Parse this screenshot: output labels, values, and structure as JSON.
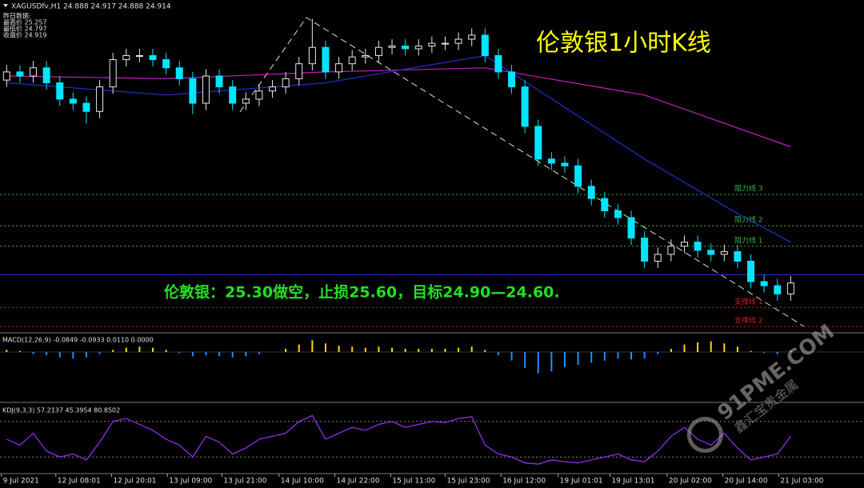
{
  "chart_data": [
    {
      "type": "candlestick",
      "header": "XAGUSDfv,H1  24.888 24.917 24.888 24.914",
      "info": [
        "昨日数据:",
        "最高价 25.257",
        "最低价 24.797",
        "收盘价 24.919"
      ],
      "title": "伦敦银1小时K线",
      "annotation": "伦敦银：25.30做空，止损25.60，目标24.90—24.60.",
      "up_color": "#e8e8e8",
      "down_color": "#00e5ff",
      "xlim": [
        -0.5,
        59.7
      ],
      "ylim": [
        24.55,
        26.9
      ],
      "open": [
        26.4,
        26.46,
        26.43,
        26.49,
        26.38,
        26.26,
        26.23,
        26.17,
        26.35,
        26.55,
        26.58,
        26.58,
        26.55,
        26.49,
        26.41,
        26.23,
        26.43,
        26.35,
        26.23,
        26.26,
        26.32,
        26.35,
        26.41,
        26.52,
        26.64,
        26.46,
        26.52,
        26.57,
        26.58,
        26.64,
        26.65,
        26.63,
        26.65,
        26.67,
        26.67,
        26.7,
        26.73,
        26.58,
        26.46,
        26.35,
        26.06,
        25.82,
        25.79,
        25.77,
        25.62,
        25.53,
        25.44,
        25.39,
        25.24,
        25.07,
        25.12,
        25.18,
        25.21,
        25.15,
        25.12,
        25.14,
        25.07,
        24.92,
        24.89,
        24.83
      ],
      "high": [
        26.51,
        26.51,
        26.54,
        26.54,
        26.43,
        26.31,
        26.28,
        26.4,
        26.6,
        26.63,
        26.63,
        26.63,
        26.6,
        26.54,
        26.46,
        26.48,
        26.48,
        26.4,
        26.31,
        26.37,
        26.4,
        26.46,
        26.57,
        26.85,
        26.69,
        26.57,
        26.62,
        26.63,
        26.69,
        26.7,
        26.7,
        26.7,
        26.72,
        26.72,
        26.75,
        26.78,
        26.78,
        26.63,
        26.51,
        26.4,
        26.11,
        25.87,
        25.84,
        25.82,
        25.67,
        25.58,
        25.49,
        25.44,
        25.29,
        25.17,
        25.23,
        25.26,
        25.26,
        25.2,
        25.19,
        25.19,
        25.12,
        24.97,
        24.94,
        24.96
      ],
      "low": [
        26.35,
        26.38,
        26.38,
        26.33,
        26.21,
        26.18,
        26.08,
        26.12,
        26.3,
        26.5,
        26.53,
        26.5,
        26.44,
        26.36,
        26.15,
        26.18,
        26.3,
        26.18,
        26.18,
        26.21,
        26.27,
        26.3,
        26.36,
        26.47,
        26.41,
        26.41,
        26.47,
        26.52,
        26.53,
        26.59,
        26.58,
        26.58,
        26.6,
        26.62,
        26.62,
        26.65,
        26.53,
        26.41,
        26.3,
        26.01,
        25.77,
        25.74,
        25.72,
        25.57,
        25.48,
        25.39,
        25.34,
        25.19,
        25.02,
        25.02,
        25.07,
        25.13,
        25.1,
        25.07,
        25.07,
        25.02,
        24.87,
        24.84,
        24.78,
        24.78
      ],
      "close": [
        26.46,
        26.43,
        26.49,
        26.38,
        26.26,
        26.23,
        26.17,
        26.35,
        26.55,
        26.58,
        26.58,
        26.55,
        26.49,
        26.41,
        26.23,
        26.43,
        26.35,
        26.23,
        26.26,
        26.32,
        26.35,
        26.41,
        26.52,
        26.64,
        26.46,
        26.52,
        26.57,
        26.58,
        26.64,
        26.65,
        26.63,
        26.65,
        26.67,
        26.67,
        26.7,
        26.73,
        26.58,
        26.46,
        26.35,
        26.06,
        25.82,
        25.79,
        25.77,
        25.62,
        25.53,
        25.44,
        25.39,
        25.24,
        25.07,
        25.12,
        25.18,
        25.21,
        25.15,
        25.12,
        25.14,
        25.07,
        24.92,
        24.89,
        24.83,
        24.91
      ],
      "lines": [
        {
          "color": "#c020c0",
          "x": [
            0,
            12,
            24,
            36,
            48,
            59
          ],
          "values": [
            26.43,
            26.41,
            26.46,
            26.49,
            26.29,
            25.91
          ]
        },
        {
          "color": "#2030d0",
          "x": [
            0,
            12,
            24,
            36,
            48,
            55,
            59
          ],
          "values": [
            26.38,
            26.29,
            26.38,
            26.58,
            25.82,
            25.42,
            25.21
          ]
        }
      ],
      "levels": [
        {
          "name": "阻力线 3",
          "value": 25.56,
          "color": "#3cb043"
        },
        {
          "name": "阻力线 2",
          "value": 25.33,
          "color": "#3cb043"
        },
        {
          "name": "阻力线 1",
          "value": 25.18,
          "color": "#3cb043"
        },
        {
          "value": 24.97,
          "color": "#2030e0"
        },
        {
          "name": "支撑线 1",
          "value": 24.73,
          "color": "#d02020"
        },
        {
          "name": "支撑线 2",
          "value": 24.59,
          "color": "#d02020"
        }
      ]
    },
    {
      "type": "bar",
      "title": "MACD(12,26,9) -0.0849 -0.0933 0.0110 0.0000",
      "color": "#ffd700",
      "negative_color": "#1e90ff",
      "xlim": [
        -0.5,
        59.7
      ],
      "ylim": [
        -0.45,
        0.15
      ],
      "values": [
        0.02,
        0.01,
        -0.02,
        -0.03,
        -0.05,
        -0.06,
        -0.05,
        -0.02,
        0.02,
        0.04,
        0.05,
        0.04,
        0.02,
        -0.01,
        -0.04,
        -0.03,
        -0.04,
        -0.05,
        -0.04,
        -0.02,
        0.0,
        0.03,
        0.07,
        0.11,
        0.08,
        0.06,
        0.05,
        0.04,
        0.05,
        0.04,
        0.03,
        0.03,
        0.03,
        0.03,
        0.04,
        0.05,
        0.02,
        -0.03,
        -0.08,
        -0.15,
        -0.2,
        -0.18,
        -0.14,
        -0.12,
        -0.1,
        -0.08,
        -0.06,
        -0.07,
        -0.06,
        -0.02,
        0.03,
        0.07,
        0.09,
        0.1,
        0.08,
        0.05,
        0.01,
        -0.01,
        -0.02,
        0.01
      ]
    },
    {
      "type": "line",
      "title": "KDJ(9,3,3) 57.2137 45.3954 80.8502",
      "color": "#9b30ff",
      "xlim": [
        -0.5,
        59.7
      ],
      "ylim": [
        0,
        100
      ],
      "levels": [
        20,
        80
      ],
      "values": [
        50,
        40,
        60,
        30,
        20,
        25,
        15,
        45,
        80,
        85,
        75,
        65,
        50,
        40,
        20,
        55,
        45,
        25,
        35,
        50,
        55,
        60,
        80,
        90,
        50,
        60,
        70,
        65,
        75,
        80,
        70,
        75,
        80,
        78,
        85,
        88,
        40,
        25,
        20,
        10,
        8,
        15,
        12,
        10,
        15,
        20,
        25,
        15,
        12,
        30,
        55,
        70,
        50,
        40,
        60,
        35,
        15,
        20,
        25,
        55
      ],
      "xticks": [
        {
          "value": -0.4,
          "label": "9 Jul 2021"
        },
        {
          "value": 3.7,
          "label": "12 Jul 08:01"
        },
        {
          "value": 7.9,
          "label": "12 Jul 20:01"
        },
        {
          "value": 12.1,
          "label": "13 Jul 09:00"
        },
        {
          "value": 16.2,
          "label": "13 Jul 21:00"
        },
        {
          "value": 20.5,
          "label": "14 Jul 10:00"
        },
        {
          "value": 24.7,
          "label": "14 Jul 22:00"
        },
        {
          "value": 28.9,
          "label": "15 Jul 11:00"
        },
        {
          "value": 33.0,
          "label": "15 Jul 23:00"
        },
        {
          "value": 37.2,
          "label": "16 Jul 12:00"
        },
        {
          "value": 41.5,
          "label": "19 Jul 01:01"
        },
        {
          "value": 45.4,
          "label": "19 Jul 13:01"
        },
        {
          "value": 49.7,
          "label": "20 Jul 02:00"
        },
        {
          "value": 53.9,
          "label": "20 Jul 14:00"
        },
        {
          "value": 58.1,
          "label": "21 Jul 03:00"
        }
      ]
    }
  ],
  "watermark": {
    "text": "91PME.COM",
    "subtext": "鑫汇宝贵金属"
  }
}
